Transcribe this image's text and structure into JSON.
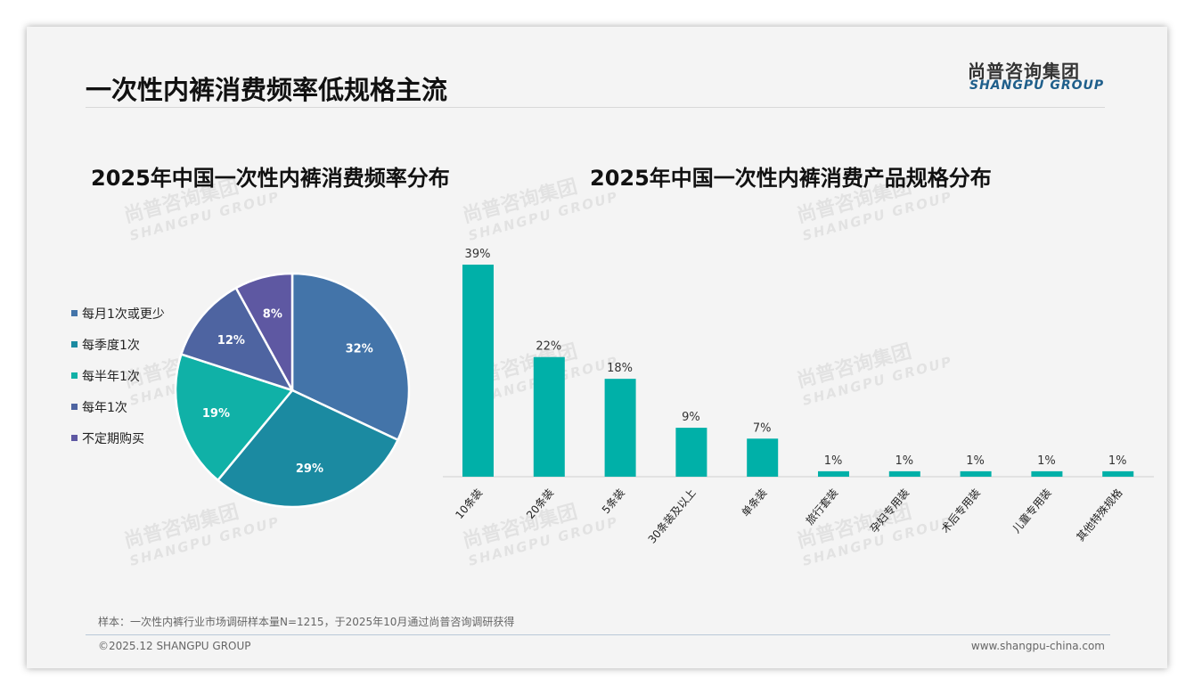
{
  "header": {
    "title": "一次性内裤消费频率低规格主流",
    "logo_cn": "尚普咨询集团",
    "logo_en": "SHANGPU GROUP"
  },
  "watermark": {
    "cn": "尚普咨询集团",
    "en": "SHANGPU GROUP"
  },
  "chart_data": [
    {
      "type": "pie",
      "title": "2025年中国一次性内裤消费频率分布",
      "labels": [
        "每月1次或更少",
        "每季度1次",
        "每半年1次",
        "每年1次",
        "不定期购买"
      ],
      "values": [
        32,
        29,
        19,
        12,
        8
      ],
      "data_labels": [
        "32%",
        "29%",
        "19%",
        "12%",
        "8%"
      ],
      "colors": [
        "#4374a9",
        "#1b8aa1",
        "#10b1a7",
        "#4e64a1",
        "#5e58a2"
      ],
      "legend": "left"
    },
    {
      "type": "bar",
      "title": "2025年中国一次性内裤消费产品规格分布",
      "categories": [
        "10条装",
        "20条装",
        "5条装",
        "30条装及以上",
        "单条装",
        "旅行套装",
        "孕妇专用装",
        "术后专用装",
        "儿童专用装",
        "其他特殊规格"
      ],
      "values": [
        39,
        22,
        18,
        9,
        7,
        1,
        1,
        1,
        1,
        1
      ],
      "data_labels": [
        "39%",
        "22%",
        "18%",
        "9%",
        "7%",
        "1%",
        "1%",
        "1%",
        "1%",
        "1%"
      ],
      "color": "#00b0a8",
      "ylim": [
        0,
        40
      ],
      "grid": false
    }
  ],
  "footer": {
    "note": "样本：一次性内裤行业市场调研样本量N=1215，于2025年10月通过尚普咨询调研获得",
    "copyright": "©2025.12 SHANGPU GROUP",
    "website": "www.shangpu-china.com"
  }
}
